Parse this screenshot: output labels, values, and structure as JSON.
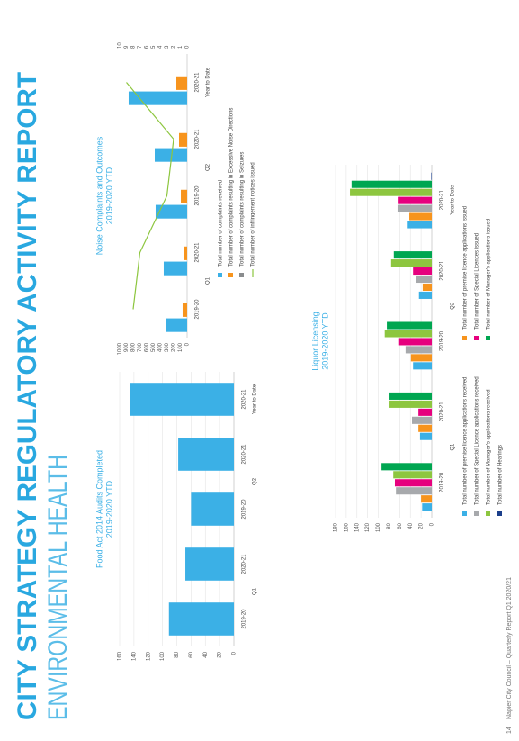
{
  "header": {
    "title": "CITY STRATEGY REGULATORY ACTIVITY REPORT",
    "subtitle": "ENVIRONMENTAL HEALTH"
  },
  "footer": {
    "page": "14",
    "text": "Napier City Council – Quarterly Report Q1 2020/21"
  },
  "chart_data": [
    {
      "type": "bar",
      "title": "Food Act 2014 Audits Completed",
      "subtitle": "2019-2020 YTD",
      "groups": [
        {
          "label": "Q1",
          "categories": [
            "2019-20",
            "2020-21"
          ]
        },
        {
          "label": "Q2",
          "categories": [
            "2019-20",
            "2020-21"
          ]
        },
        {
          "label": "Year to Date",
          "categories": [
            "2020-21"
          ]
        }
      ],
      "values": [
        91,
        68,
        60,
        78,
        146
      ],
      "color": "#3bb0e6",
      "ylim": [
        0,
        160
      ],
      "yticks": [
        0,
        20,
        40,
        60,
        80,
        100,
        120,
        140,
        160
      ],
      "grid": true
    },
    {
      "type": "bar",
      "title": "Noise Complaints and Outcomes",
      "subtitle": "2019-2020 YTD",
      "groups": [
        {
          "label": "Q1",
          "categories": [
            "2019-20",
            "2020-21"
          ]
        },
        {
          "label": "Q2",
          "categories": [
            "2019-20",
            "2020-21"
          ]
        },
        {
          "label": "Year to Date",
          "categories": [
            "2020-21"
          ]
        }
      ],
      "series": [
        {
          "name": "Total number of complaints received",
          "color": "#3bb0e6",
          "values": [
            307,
            347,
            467,
            480,
            867
          ]
        },
        {
          "name": "Total number of complaints resulting in Excessive Noise Directions",
          "color": "#f7941d",
          "values": [
            67,
            40,
            93,
            120,
            160
          ]
        },
        {
          "name": "Total number of complaints resulting in Seizures",
          "color": "#8a8c8e",
          "values": [
            0,
            0,
            0,
            0,
            0
          ]
        },
        {
          "name": "Total number of infringement notices issued",
          "color": "#8dc63f",
          "type": "line",
          "axis": "y2",
          "values": [
            8,
            7,
            3,
            2,
            9
          ]
        }
      ],
      "ylim": [
        0,
        1000
      ],
      "yticks": [
        0,
        100,
        200,
        300,
        400,
        500,
        600,
        700,
        800,
        900,
        1000
      ],
      "y2lim": [
        0,
        10
      ],
      "y2ticks": [
        0,
        1,
        2,
        3,
        4,
        5,
        6,
        7,
        8,
        9,
        10
      ],
      "grid": false
    },
    {
      "type": "bar",
      "title": "Liquor Licensing",
      "subtitle": "2019-2020 YTD",
      "groups": [
        {
          "label": "Q1",
          "categories": [
            "2019-20",
            "2020-21"
          ]
        },
        {
          "label": "Q2",
          "categories": [
            "2019-20",
            "2020-21"
          ]
        },
        {
          "label": "Year to Date",
          "categories": [
            "2020-21"
          ]
        }
      ],
      "series": [
        {
          "name": "Total number of premise licence applications received",
          "color": "#3bb0e6",
          "values": [
            18,
            22,
            35,
            24,
            45
          ]
        },
        {
          "name": "Total number of premise licence applications issued",
          "color": "#f7941d",
          "values": [
            20,
            25,
            39,
            17,
            42
          ]
        },
        {
          "name": "Total number of Special Licence applications received",
          "color": "#a7a9ac",
          "values": [
            67,
            37,
            49,
            30,
            64
          ]
        },
        {
          "name": "Total number of Special Licences issued",
          "color": "#e6007e",
          "values": [
            69,
            25,
            61,
            35,
            62
          ]
        },
        {
          "name": "Total number of Manager's applications received",
          "color": "#8dc63f",
          "values": [
            72,
            79,
            88,
            76,
            153
          ]
        },
        {
          "name": "Total number of Manager's applications issued",
          "color": "#00a651",
          "values": [
            94,
            79,
            84,
            71,
            150
          ]
        },
        {
          "name": "Total number of Hearings",
          "color": "#1b3f8b",
          "values": [
            0,
            0,
            0,
            0,
            1
          ]
        }
      ],
      "ylim": [
        0,
        180
      ],
      "yticks": [
        0,
        20,
        40,
        60,
        80,
        100,
        120,
        140,
        160,
        180
      ],
      "grid": true
    }
  ]
}
